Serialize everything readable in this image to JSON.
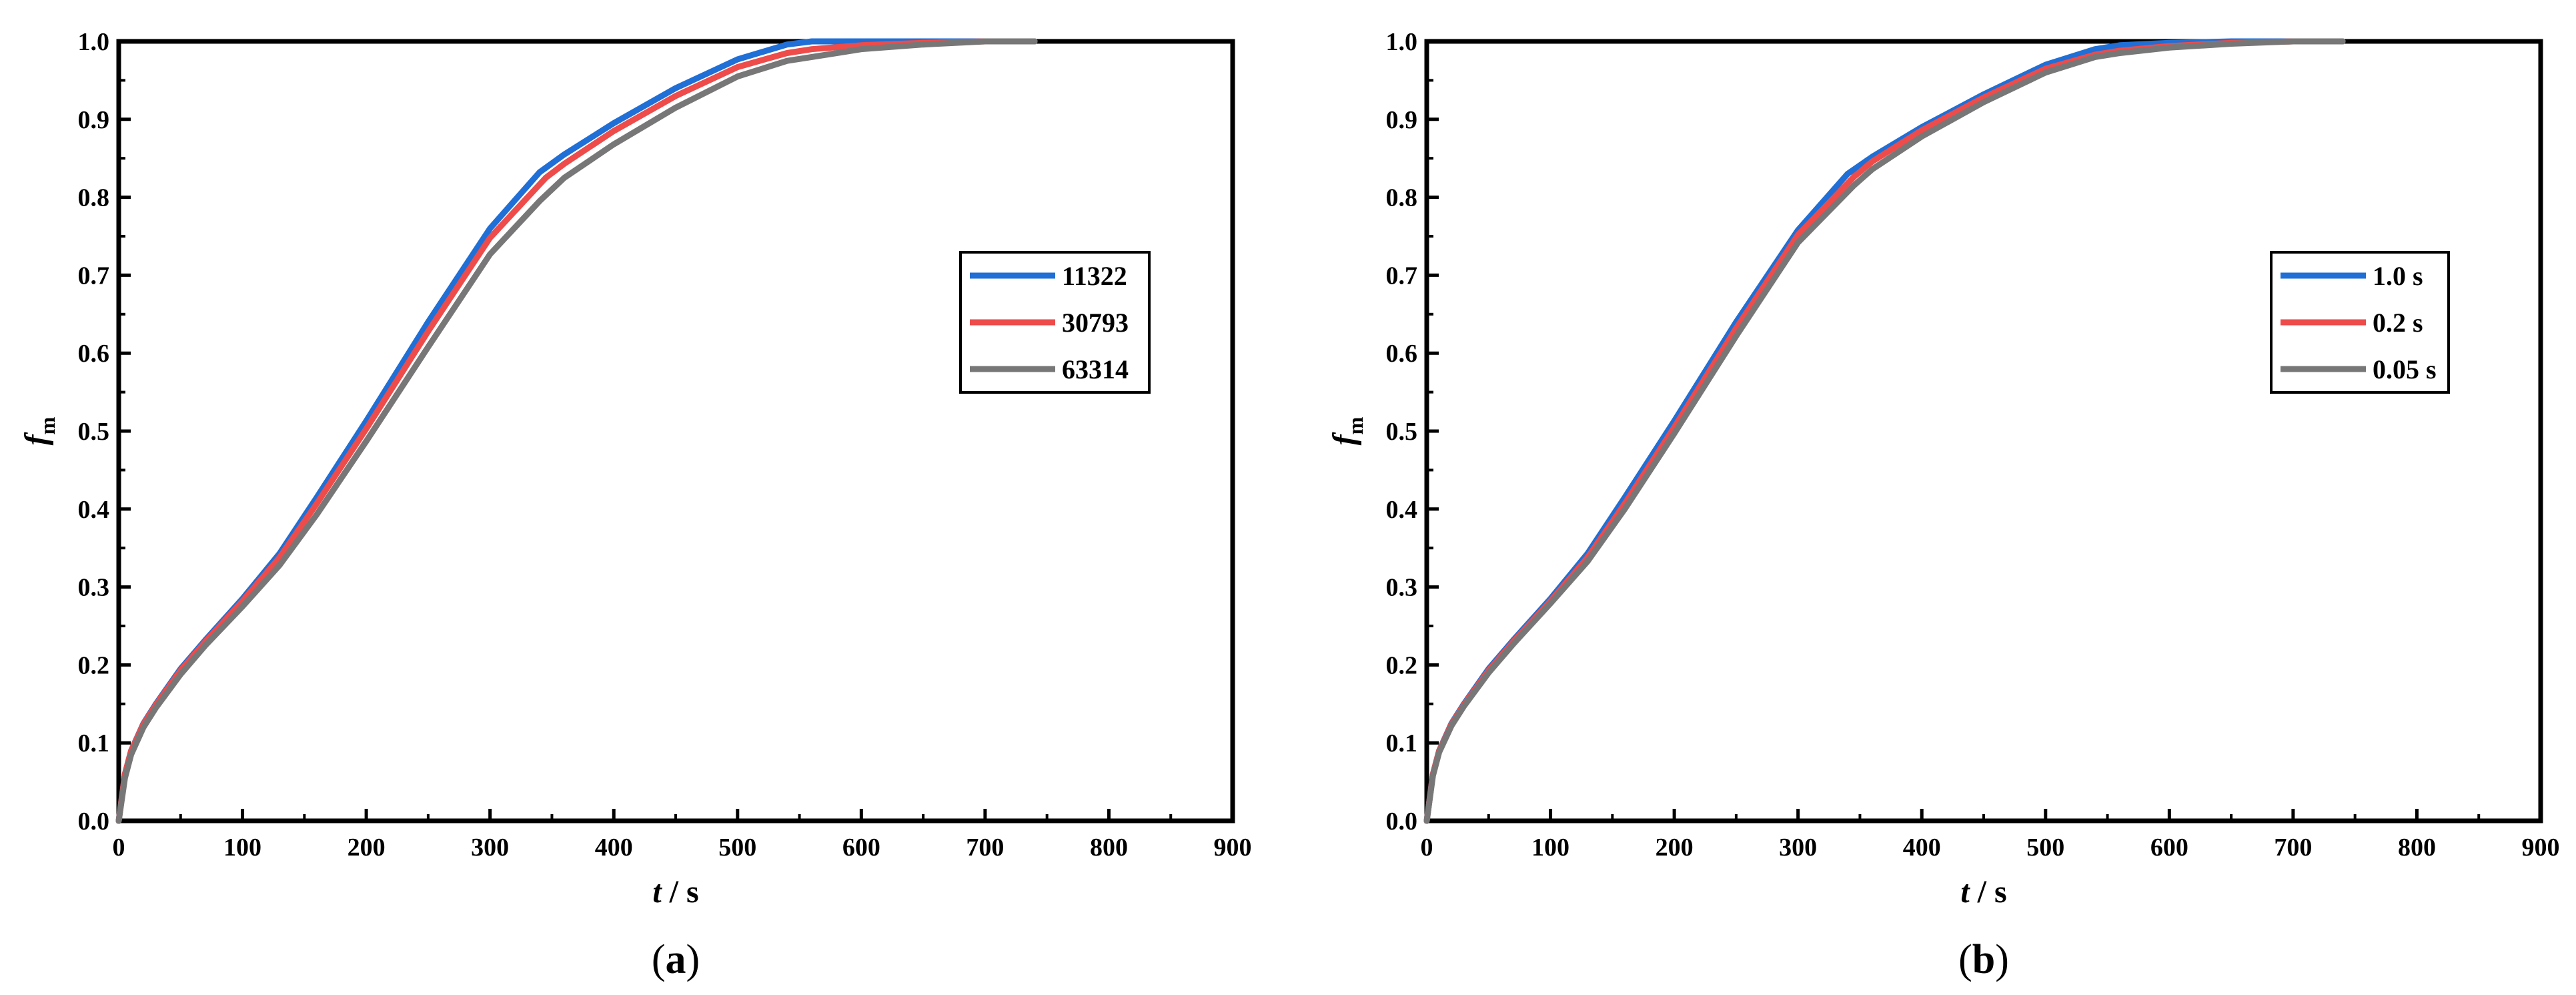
{
  "chart_data": [
    {
      "type": "line",
      "panel_label": "a",
      "xlabel": "t",
      "xlabel_unit": "s",
      "ylabel": "f",
      "ylabel_sub": "m",
      "xlim": [
        0,
        900
      ],
      "ylim": [
        0,
        1.0
      ],
      "xticks": [
        "0",
        "100",
        "200",
        "300",
        "400",
        "500",
        "600",
        "700",
        "800",
        "900"
      ],
      "yticks": [
        "0.0",
        "0.1",
        "0.2",
        "0.3",
        "0.4",
        "0.5",
        "0.6",
        "0.7",
        "0.8",
        "0.9",
        "1.0"
      ],
      "grid": false,
      "legend_position": "right",
      "series": [
        {
          "name": "11322",
          "color": "#1f6fd6",
          "x": [
            0,
            5,
            10,
            20,
            30,
            50,
            70,
            100,
            130,
            160,
            200,
            250,
            300,
            340,
            360,
            400,
            450,
            500,
            540,
            560,
            600,
            650,
            700,
            740
          ],
          "y": [
            0,
            0.06,
            0.09,
            0.125,
            0.15,
            0.195,
            0.232,
            0.285,
            0.343,
            0.415,
            0.513,
            0.64,
            0.76,
            0.832,
            0.855,
            0.895,
            0.94,
            0.977,
            0.996,
            1.0,
            1.0,
            1.0,
            1.0,
            1.0
          ]
        },
        {
          "name": "30793",
          "color": "#ee4b4b",
          "x": [
            0,
            5,
            10,
            20,
            30,
            50,
            70,
            100,
            130,
            160,
            200,
            250,
            300,
            345,
            360,
            400,
            450,
            500,
            540,
            560,
            600,
            650,
            700,
            740
          ],
          "y": [
            0,
            0.06,
            0.09,
            0.124,
            0.149,
            0.193,
            0.23,
            0.282,
            0.338,
            0.407,
            0.503,
            0.628,
            0.748,
            0.825,
            0.843,
            0.885,
            0.93,
            0.967,
            0.985,
            0.99,
            0.995,
            0.998,
            1.0,
            1.0
          ]
        },
        {
          "name": "63314",
          "color": "#777777",
          "x": [
            0,
            5,
            10,
            20,
            30,
            50,
            70,
            100,
            130,
            160,
            200,
            250,
            300,
            340,
            360,
            400,
            450,
            500,
            540,
            560,
            600,
            650,
            700,
            740
          ],
          "y": [
            0,
            0.055,
            0.085,
            0.12,
            0.145,
            0.188,
            0.225,
            0.275,
            0.328,
            0.393,
            0.487,
            0.608,
            0.727,
            0.795,
            0.825,
            0.868,
            0.915,
            0.955,
            0.975,
            0.98,
            0.99,
            0.996,
            1.0,
            1.0
          ]
        }
      ]
    },
    {
      "type": "line",
      "panel_label": "b",
      "xlabel": "t",
      "xlabel_unit": "s",
      "ylabel": "f",
      "ylabel_sub": "m",
      "xlim": [
        0,
        900
      ],
      "ylim": [
        0,
        1.0
      ],
      "xticks": [
        "0",
        "100",
        "200",
        "300",
        "400",
        "500",
        "600",
        "700",
        "800",
        "900"
      ],
      "yticks": [
        "0.0",
        "0.1",
        "0.2",
        "0.3",
        "0.4",
        "0.5",
        "0.6",
        "0.7",
        "0.8",
        "0.9",
        "1.0"
      ],
      "grid": false,
      "legend_position": "right",
      "series": [
        {
          "name": "1.0 s",
          "color": "#1f6fd6",
          "x": [
            0,
            5,
            10,
            20,
            30,
            50,
            70,
            100,
            130,
            160,
            200,
            250,
            300,
            340,
            360,
            400,
            450,
            500,
            540,
            560,
            600,
            650,
            700,
            740
          ],
          "y": [
            0,
            0.06,
            0.09,
            0.125,
            0.15,
            0.195,
            0.232,
            0.285,
            0.343,
            0.415,
            0.513,
            0.64,
            0.758,
            0.83,
            0.852,
            0.89,
            0.932,
            0.97,
            0.99,
            0.995,
            0.998,
            1.0,
            1.0,
            1.0
          ]
        },
        {
          "name": "0.2 s",
          "color": "#ee4b4b",
          "x": [
            0,
            5,
            10,
            20,
            30,
            50,
            70,
            100,
            130,
            160,
            200,
            250,
            300,
            345,
            360,
            400,
            450,
            500,
            540,
            560,
            600,
            650,
            700,
            740
          ],
          "y": [
            0,
            0.06,
            0.09,
            0.124,
            0.149,
            0.193,
            0.23,
            0.282,
            0.338,
            0.407,
            0.505,
            0.632,
            0.752,
            0.826,
            0.846,
            0.886,
            0.928,
            0.965,
            0.983,
            0.988,
            0.994,
            0.998,
            1.0,
            1.0
          ]
        },
        {
          "name": "0.05 s",
          "color": "#777777",
          "x": [
            0,
            5,
            10,
            20,
            30,
            50,
            70,
            100,
            130,
            160,
            200,
            250,
            300,
            345,
            360,
            400,
            450,
            500,
            540,
            560,
            600,
            650,
            700,
            740
          ],
          "y": [
            0,
            0.058,
            0.088,
            0.122,
            0.147,
            0.19,
            0.227,
            0.279,
            0.333,
            0.4,
            0.497,
            0.622,
            0.742,
            0.815,
            0.836,
            0.878,
            0.922,
            0.96,
            0.98,
            0.985,
            0.992,
            0.997,
            1.0,
            1.0
          ]
        }
      ]
    }
  ]
}
